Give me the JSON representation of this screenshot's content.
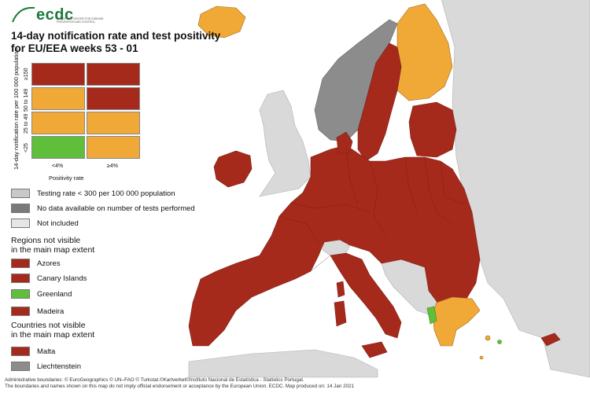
{
  "header": {
    "logo_text": "ecdc",
    "logo_subtext": "EUROPEAN CENTRE FOR DISEASE PREVENTION AND CONTROL",
    "title_line1": "14-day notification rate and test positivity",
    "title_line2": "for EU/EEA weeks 53 - 01"
  },
  "matrix": {
    "y_axis_label": "14-day notification rate per 100 000 population",
    "x_axis_label": "Positivity rate",
    "row_labels": [
      "≥150",
      "50 to 149",
      "25 to 49",
      "<25"
    ],
    "col_labels": [
      "<4%",
      "≥4%"
    ],
    "cells": [
      [
        "red",
        "red"
      ],
      [
        "orange",
        "red"
      ],
      [
        "orange",
        "orange"
      ],
      [
        "green",
        "orange"
      ]
    ]
  },
  "legend": {
    "testing_rate": "Testing rate < 300 per 100 000 population",
    "no_data": "No data available on number of tests performed",
    "not_included": "Not included",
    "regions_heading_1": "Regions not visible",
    "regions_heading_2": "in the main map extent",
    "regions": [
      {
        "label": "Azores",
        "color": "red"
      },
      {
        "label": "Canary Islands",
        "color": "red"
      },
      {
        "label": "Greenland",
        "color": "green"
      },
      {
        "label": "Madeira",
        "color": "red"
      }
    ],
    "countries_heading_1": "Countries not visible",
    "countries_heading_2": "in the main map extent",
    "countries": [
      {
        "label": "Malta",
        "color": "red"
      },
      {
        "label": "Liechtenstein",
        "color": "grey"
      }
    ]
  },
  "colors": {
    "red": "#a52a1c",
    "orange": "#f0a837",
    "green": "#5fbf3a",
    "grey": "#8c8c8c",
    "lightgrey": "#d9d9d9"
  },
  "footer": {
    "line1": "Administrative boundaries: © EuroGeographics © UN–FAO © Turkstat.©Kartverket©Instituto Nacional de Estatística - Statistics Portugal.",
    "line2": "The boundaries and names shown on this map do not imply official endorsement or acceptance by the European Union. ECDC. Map produced on: 14 Jan 2021"
  }
}
